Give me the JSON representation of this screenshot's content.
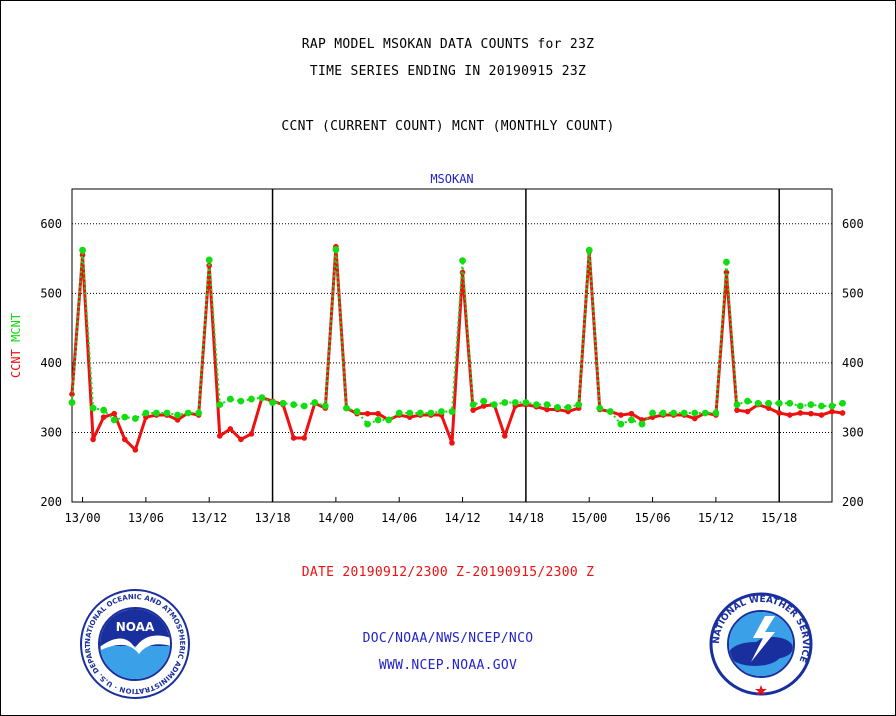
{
  "header": {
    "title_line1": "RAP MODEL MSOKAN DATA COUNTS for 23Z",
    "title_line2": "TIME SERIES ENDING IN 20190915 23Z",
    "subtitle": "CCNT (CURRENT COUNT) MCNT (MONTHLY COUNT)"
  },
  "footer": {
    "date_range": "DATE 20190912/2300 Z-20190915/2300 Z",
    "agency": "DOC/NOAA/NWS/NCEP/NCO",
    "website": "WWW.NCEP.NOAA.GOV"
  },
  "logos": {
    "noaa_center": "NOAA",
    "noaa_ring": "NATIONAL OCEANIC AND ATMOSPHERIC ADMINISTRATION · U.S. DEPARTMENT OF COMMERCE",
    "nws_ring": "NATIONAL WEATHER SERVICE"
  },
  "colors": {
    "ccnt": "#ee1111",
    "mcnt": "#11dd11",
    "station_label": "#2222cc",
    "footer_blue": "#2222cc",
    "date_red": "#ee1111"
  },
  "chart_data": {
    "type": "line",
    "station": "MSOKAN",
    "ylabel_parts": [
      {
        "text": "CCNT",
        "color": "#ee1111"
      },
      {
        "text": "MCNT",
        "color": "#11dd11"
      }
    ],
    "ylim": [
      200,
      650
    ],
    "yticks": [
      200,
      300,
      400,
      500,
      600
    ],
    "xlim": [
      -1,
      71
    ],
    "xtick_positions": [
      0,
      6,
      12,
      18,
      24,
      30,
      36,
      42,
      48,
      54,
      60,
      66
    ],
    "xtick_labels": [
      "13/00",
      "13/06",
      "13/12",
      "13/18",
      "14/00",
      "14/06",
      "14/12",
      "14/18",
      "15/00",
      "15/06",
      "15/12",
      "15/18"
    ],
    "day_boundaries": [
      18,
      42,
      66
    ],
    "grid": "horizontal dotted",
    "series": [
      {
        "name": "CCNT",
        "x_start": -1,
        "values": [
          355,
          555,
          290,
          322,
          327,
          290,
          275,
          322,
          325,
          325,
          318,
          328,
          325,
          540,
          295,
          305,
          290,
          298,
          350,
          345,
          340,
          292,
          292,
          342,
          335,
          567,
          335,
          327,
          327,
          327,
          318,
          325,
          322,
          325,
          325,
          325,
          285,
          530,
          332,
          338,
          340,
          295,
          338,
          340,
          337,
          333,
          333,
          330,
          335,
          560,
          333,
          330,
          325,
          327,
          318,
          322,
          325,
          325,
          325,
          320,
          328,
          325,
          530,
          332,
          330,
          340,
          335,
          328,
          325,
          328,
          327,
          325,
          330,
          328
        ]
      },
      {
        "name": "MCNT",
        "x_start": -1,
        "values": [
          343,
          562,
          335,
          332,
          318,
          322,
          320,
          328,
          328,
          328,
          325,
          328,
          328,
          548,
          340,
          348,
          345,
          348,
          350,
          343,
          342,
          340,
          338,
          343,
          338,
          563,
          335,
          330,
          312,
          318,
          318,
          328,
          328,
          328,
          328,
          330,
          330,
          547,
          340,
          345,
          340,
          343,
          343,
          343,
          340,
          340,
          336,
          336,
          340,
          562,
          335,
          330,
          312,
          318,
          312,
          328,
          328,
          328,
          328,
          328,
          328,
          328,
          545,
          340,
          345,
          342,
          342,
          342,
          342,
          338,
          340,
          338,
          338,
          342
        ]
      }
    ]
  }
}
